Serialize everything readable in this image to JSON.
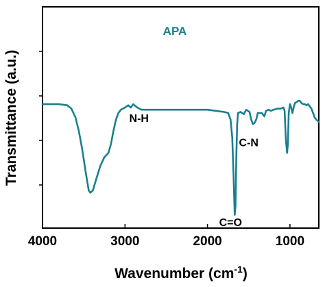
{
  "chart_data": {
    "type": "line",
    "title": "",
    "xlabel": "Wavenumber (cm",
    "xlabel_superscript": "-1",
    "xlabel_close": ")",
    "ylabel": "Transmittance (a.u.)",
    "xlim": [
      4000,
      650
    ],
    "x_reversed": true,
    "x_ticks": [
      "4000",
      "3000",
      "2000",
      "1000"
    ],
    "x_tick_values": [
      4000,
      3000,
      2000,
      1000
    ],
    "y_tick_labels_shown": false,
    "grid": false,
    "line_color": "#1a7f8e",
    "series": [
      {
        "name": "APA",
        "points": [
          [
            4000,
            0.56
          ],
          [
            3900,
            0.56
          ],
          [
            3800,
            0.56
          ],
          [
            3700,
            0.555
          ],
          [
            3650,
            0.54
          ],
          [
            3600,
            0.5
          ],
          [
            3560,
            0.44
          ],
          [
            3520,
            0.36
          ],
          [
            3480,
            0.26
          ],
          [
            3440,
            0.17
          ],
          [
            3420,
            0.16
          ],
          [
            3390,
            0.17
          ],
          [
            3350,
            0.22
          ],
          [
            3300,
            0.28
          ],
          [
            3250,
            0.32
          ],
          [
            3200,
            0.34
          ],
          [
            3170,
            0.38
          ],
          [
            3140,
            0.44
          ],
          [
            3110,
            0.49
          ],
          [
            3080,
            0.52
          ],
          [
            3050,
            0.535
          ],
          [
            3000,
            0.545
          ],
          [
            2960,
            0.555
          ],
          [
            2930,
            0.545
          ],
          [
            2900,
            0.56
          ],
          [
            2850,
            0.545
          ],
          [
            2800,
            0.535
          ],
          [
            2700,
            0.535
          ],
          [
            2600,
            0.535
          ],
          [
            2500,
            0.535
          ],
          [
            2400,
            0.535
          ],
          [
            2300,
            0.535
          ],
          [
            2200,
            0.535
          ],
          [
            2100,
            0.535
          ],
          [
            2000,
            0.535
          ],
          [
            1900,
            0.53
          ],
          [
            1800,
            0.525
          ],
          [
            1750,
            0.52
          ],
          [
            1720,
            0.49
          ],
          [
            1700,
            0.41
          ],
          [
            1685,
            0.25
          ],
          [
            1670,
            0.06
          ],
          [
            1660,
            0.1
          ],
          [
            1650,
            0.33
          ],
          [
            1640,
            0.47
          ],
          [
            1630,
            0.52
          ],
          [
            1600,
            0.525
          ],
          [
            1560,
            0.515
          ],
          [
            1530,
            0.535
          ],
          [
            1510,
            0.53
          ],
          [
            1490,
            0.525
          ],
          [
            1470,
            0.49
          ],
          [
            1450,
            0.47
          ],
          [
            1430,
            0.475
          ],
          [
            1410,
            0.49
          ],
          [
            1390,
            0.52
          ],
          [
            1360,
            0.52
          ],
          [
            1340,
            0.52
          ],
          [
            1310,
            0.505
          ],
          [
            1290,
            0.53
          ],
          [
            1260,
            0.535
          ],
          [
            1230,
            0.53
          ],
          [
            1200,
            0.535
          ],
          [
            1150,
            0.54
          ],
          [
            1110,
            0.54
          ],
          [
            1080,
            0.545
          ],
          [
            1065,
            0.53
          ],
          [
            1050,
            0.4
          ],
          [
            1035,
            0.34
          ],
          [
            1025,
            0.38
          ],
          [
            1015,
            0.52
          ],
          [
            1000,
            0.56
          ],
          [
            985,
            0.545
          ],
          [
            970,
            0.52
          ],
          [
            955,
            0.545
          ],
          [
            940,
            0.565
          ],
          [
            920,
            0.57
          ],
          [
            900,
            0.575
          ],
          [
            880,
            0.575
          ],
          [
            860,
            0.565
          ],
          [
            840,
            0.56
          ],
          [
            820,
            0.56
          ],
          [
            800,
            0.555
          ],
          [
            780,
            0.56
          ],
          [
            760,
            0.55
          ],
          [
            740,
            0.54
          ],
          [
            720,
            0.52
          ],
          [
            700,
            0.5
          ],
          [
            680,
            0.49
          ],
          [
            650,
            0.48
          ]
        ]
      }
    ],
    "ylim": [
      0,
      1
    ],
    "annotations": [
      {
        "text": "N-H",
        "x": 2830,
        "y": 0.48
      },
      {
        "text": "C=O",
        "x": 1720,
        "y": 0.01
      },
      {
        "text": "C-N",
        "x": 1500,
        "y": 0.37
      }
    ],
    "legend": {
      "text": "APA",
      "placement": "top-center"
    }
  }
}
